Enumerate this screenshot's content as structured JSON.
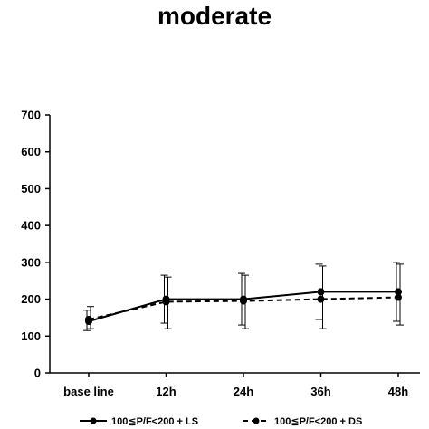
{
  "chart_data": {
    "type": "line",
    "title": "moderate",
    "xlabel": "",
    "ylabel": "",
    "categories": [
      "base line",
      "12h",
      "24h",
      "36h",
      "48h"
    ],
    "ylim": [
      0,
      700
    ],
    "yticks": [
      0,
      100,
      200,
      300,
      400,
      500,
      600,
      700
    ],
    "grid": false,
    "legend_position": "bottom",
    "series": [
      {
        "name": "100≦P/F<200 + LS",
        "line_style": "solid",
        "color": "#000000",
        "values": [
          140,
          200,
          200,
          220,
          220
        ],
        "error_upper": [
          170,
          265,
          270,
          295,
          300
        ],
        "error_lower": [
          115,
          135,
          130,
          145,
          140
        ]
      },
      {
        "name": "100≦P/F<200 + DS",
        "line_style": "dashed",
        "color": "#000000",
        "values": [
          145,
          193,
          195,
          200,
          205
        ],
        "error_upper": [
          180,
          260,
          265,
          290,
          295
        ],
        "error_lower": [
          120,
          120,
          120,
          120,
          130
        ]
      }
    ]
  }
}
